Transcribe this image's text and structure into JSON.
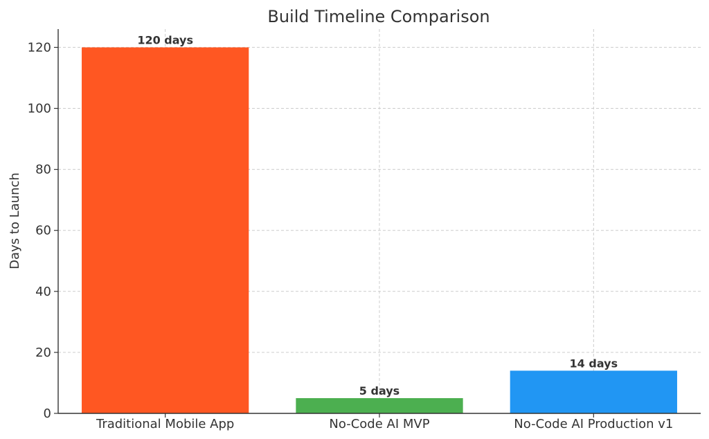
{
  "chart_data": {
    "type": "bar",
    "title": "Build Timeline Comparison",
    "xlabel": "",
    "ylabel": "Days to Launch",
    "categories": [
      "Traditional Mobile App",
      "No-Code AI MVP",
      "No-Code AI Production v1"
    ],
    "values": [
      120,
      5,
      14
    ],
    "data_labels": [
      "120 days",
      "5 days",
      "14 days"
    ],
    "colors": [
      "#FF5722",
      "#4CAF50",
      "#2196F3"
    ],
    "ylim": [
      0,
      126
    ],
    "yticks": [
      0,
      20,
      40,
      60,
      80,
      100,
      120
    ],
    "grid": true
  }
}
